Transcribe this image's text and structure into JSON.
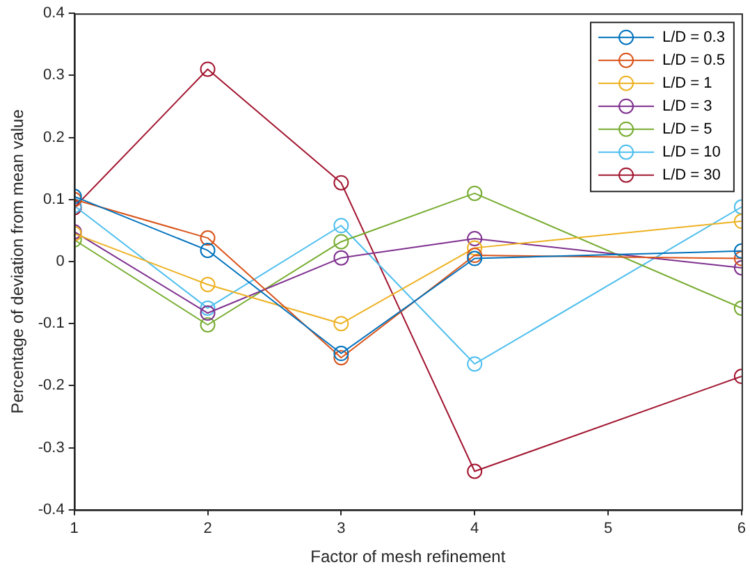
{
  "chart_data": {
    "type": "line",
    "xlabel": "Factor of mesh refinement",
    "ylabel": "Percentage of deviation from mean value",
    "x": [
      1,
      2,
      3,
      4,
      6
    ],
    "series": [
      {
        "name": "L/D = 0.3",
        "color": "#0072bd",
        "values": [
          0.105,
          0.018,
          -0.148,
          0.005,
          0.017
        ]
      },
      {
        "name": "L/D = 0.5",
        "color": "#d95319",
        "values": [
          0.1,
          0.038,
          -0.155,
          0.01,
          0.005
        ]
      },
      {
        "name": "L/D = 1",
        "color": "#edb120",
        "values": [
          0.045,
          -0.037,
          -0.1,
          0.022,
          0.065
        ]
      },
      {
        "name": "L/D = 3",
        "color": "#7e2f8e",
        "values": [
          0.048,
          -0.083,
          0.006,
          0.037,
          -0.01
        ]
      },
      {
        "name": "L/D = 5",
        "color": "#77ac30",
        "values": [
          0.035,
          -0.102,
          0.032,
          0.11,
          -0.075
        ]
      },
      {
        "name": "L/D = 10",
        "color": "#4dbeee",
        "values": [
          0.09,
          -0.075,
          0.058,
          -0.165,
          0.088
        ]
      },
      {
        "name": "L/D = 30",
        "color": "#a2142f",
        "values": [
          0.087,
          0.31,
          0.127,
          -0.338,
          -0.185
        ]
      }
    ],
    "xlim": [
      1,
      6
    ],
    "xticks": [
      1,
      2,
      3,
      4,
      5,
      6
    ],
    "ylim": [
      -0.4,
      0.4
    ],
    "yticks": [
      -0.4,
      -0.3,
      -0.2,
      -0.1,
      0,
      0.1,
      0.2,
      0.3,
      0.4
    ],
    "grid": false,
    "legend": "top right",
    "marker": "circle",
    "line_style": "solid"
  }
}
